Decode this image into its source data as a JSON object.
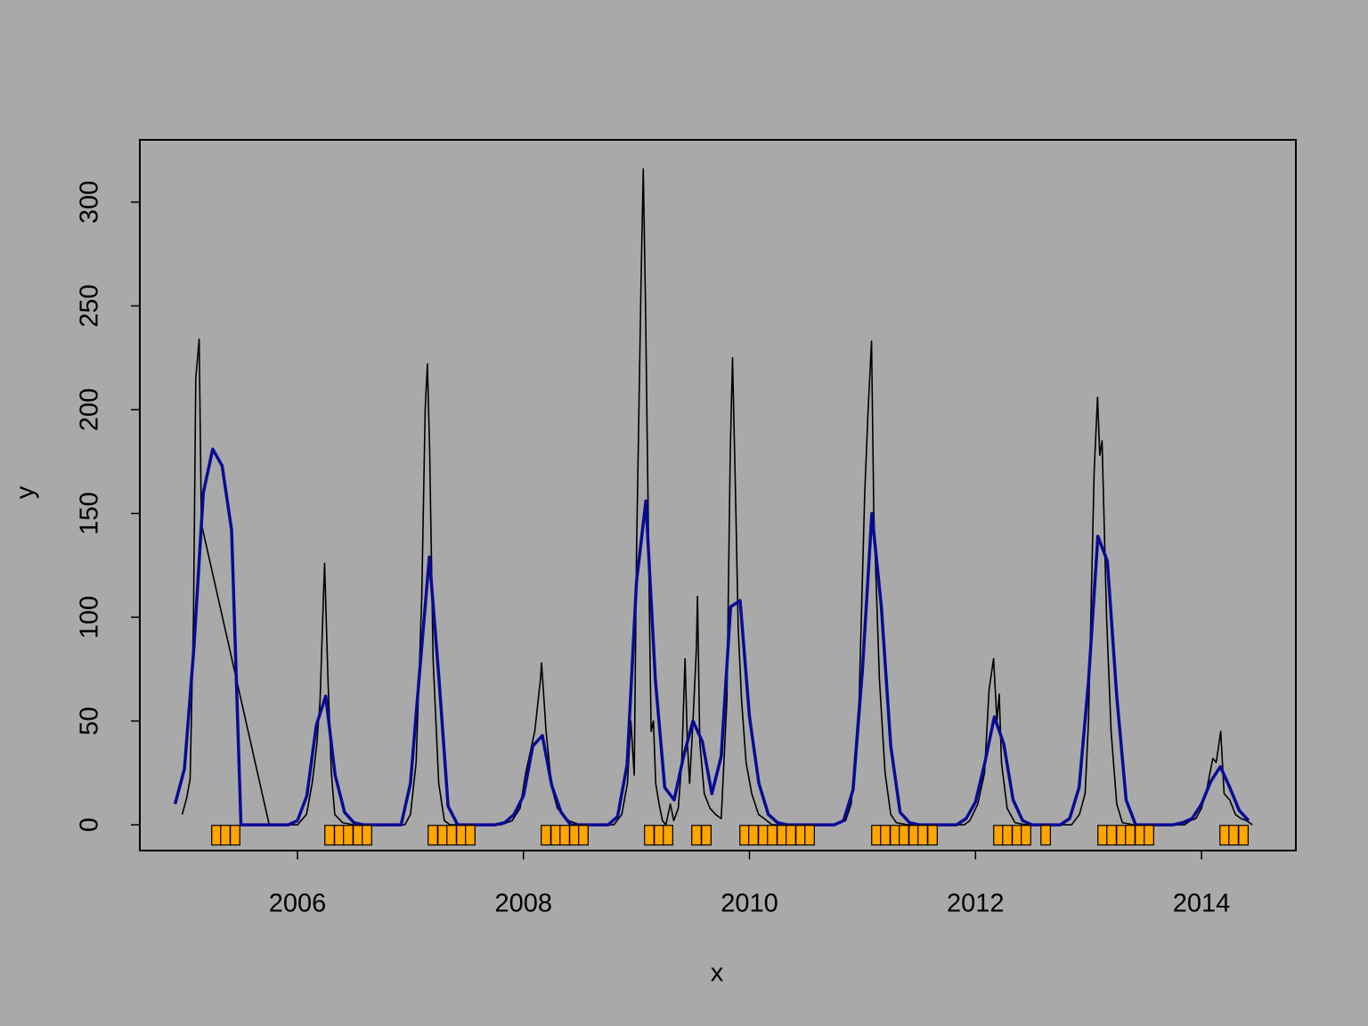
{
  "chart_data": {
    "type": "line",
    "xlabel": "x",
    "ylabel": "y",
    "xlim": [
      2004.605,
      2014.835
    ],
    "ylim": [
      -12.4,
      330
    ],
    "xticks": [
      2006,
      2008,
      2010,
      2012,
      2014
    ],
    "yticks": [
      0,
      50,
      100,
      150,
      200,
      250,
      300
    ],
    "background": "#a9a9a9",
    "series": [
      {
        "type": "line",
        "color": "#000000",
        "x": [
          2004.98,
          2005.02,
          2005.05,
          2005.08,
          2005.1,
          2005.13,
          2005.15,
          2005.75,
          2006.0,
          2006.08,
          2006.13,
          2006.17,
          2006.2,
          2006.23,
          2006.24,
          2006.27,
          2006.3,
          2006.33,
          2006.4,
          2006.5,
          2006.95,
          2007.0,
          2007.05,
          2007.1,
          2007.13,
          2007.15,
          2007.17,
          2007.2,
          2007.25,
          2007.3,
          2007.35,
          2007.8,
          2007.9,
          2007.97,
          2008.02,
          2008.1,
          2008.15,
          2008.16,
          2008.2,
          2008.25,
          2008.3,
          2008.4,
          2008.5,
          2008.8,
          2008.87,
          2008.92,
          2008.95,
          2008.98,
          2009.0,
          2009.04,
          2009.06,
          2009.08,
          2009.12,
          2009.13,
          2009.15,
          2009.17,
          2009.2,
          2009.23,
          2009.26,
          2009.3,
          2009.33,
          2009.37,
          2009.4,
          2009.43,
          2009.45,
          2009.47,
          2009.5,
          2009.53,
          2009.54,
          2009.56,
          2009.6,
          2009.65,
          2009.7,
          2009.75,
          2009.8,
          2009.83,
          2009.85,
          2009.88,
          2009.9,
          2009.93,
          2009.97,
          2010.02,
          2010.08,
          2010.13,
          2010.2,
          2010.75,
          2010.85,
          2010.9,
          2010.97,
          2011.02,
          2011.05,
          2011.08,
          2011.1,
          2011.15,
          2011.2,
          2011.25,
          2011.3,
          2011.4,
          2011.9,
          2011.95,
          2012.02,
          2012.08,
          2012.12,
          2012.16,
          2012.19,
          2012.21,
          2012.23,
          2012.28,
          2012.35,
          2012.45,
          2012.85,
          2012.92,
          2012.97,
          2013.0,
          2013.05,
          2013.08,
          2013.1,
          2013.12,
          2013.16,
          2013.2,
          2013.25,
          2013.3,
          2013.4,
          2013.85,
          2013.9,
          2013.95,
          2014.0,
          2014.05,
          2014.1,
          2014.13,
          2014.17,
          2014.2,
          2014.25,
          2014.3,
          2014.35,
          2014.4,
          2014.45
        ],
        "values": [
          5,
          13,
          22,
          100,
          215,
          234,
          145,
          0,
          0,
          5,
          20,
          38,
          60,
          110,
          126,
          70,
          25,
          5,
          1,
          0,
          0,
          5,
          30,
          110,
          200,
          222,
          180,
          80,
          20,
          2,
          0,
          0,
          2,
          8,
          25,
          45,
          70,
          78,
          45,
          18,
          8,
          2,
          0,
          0,
          5,
          20,
          50,
          24,
          130,
          260,
          316,
          250,
          80,
          45,
          50,
          20,
          10,
          2,
          0,
          10,
          2,
          8,
          30,
          80,
          40,
          20,
          50,
          85,
          110,
          40,
          15,
          8,
          5,
          3,
          60,
          180,
          225,
          150,
          95,
          60,
          30,
          15,
          5,
          3,
          0,
          0,
          2,
          10,
          60,
          160,
          200,
          233,
          150,
          70,
          25,
          5,
          1,
          0,
          0,
          2,
          10,
          25,
          65,
          80,
          50,
          63,
          30,
          8,
          1,
          0,
          0,
          5,
          15,
          50,
          170,
          206,
          178,
          185,
          100,
          45,
          10,
          1,
          0,
          0,
          2,
          3,
          8,
          18,
          32,
          30,
          45,
          15,
          12,
          5,
          3,
          2,
          0
        ]
      },
      {
        "type": "line",
        "color": "#0a0a96",
        "x": [
          2004.917,
          2005.0,
          2005.083,
          2005.167,
          2005.25,
          2005.333,
          2005.417,
          2005.5,
          2005.583,
          2005.667,
          2005.75,
          2005.833,
          2005.917,
          2006.0,
          2006.083,
          2006.167,
          2006.25,
          2006.333,
          2006.417,
          2006.5,
          2006.583,
          2006.667,
          2006.75,
          2006.833,
          2006.917,
          2007.0,
          2007.083,
          2007.167,
          2007.25,
          2007.333,
          2007.417,
          2007.5,
          2007.583,
          2007.667,
          2007.75,
          2007.833,
          2007.917,
          2008.0,
          2008.083,
          2008.167,
          2008.25,
          2008.333,
          2008.417,
          2008.5,
          2008.583,
          2008.667,
          2008.75,
          2008.833,
          2008.917,
          2009.0,
          2009.083,
          2009.167,
          2009.25,
          2009.333,
          2009.417,
          2009.5,
          2009.583,
          2009.667,
          2009.75,
          2009.833,
          2009.917,
          2010.0,
          2010.083,
          2010.167,
          2010.25,
          2010.333,
          2010.417,
          2010.5,
          2010.583,
          2010.667,
          2010.75,
          2010.833,
          2010.917,
          2011.0,
          2011.083,
          2011.167,
          2011.25,
          2011.333,
          2011.417,
          2011.5,
          2011.583,
          2011.667,
          2011.75,
          2011.833,
          2011.917,
          2012.0,
          2012.083,
          2012.167,
          2012.25,
          2012.333,
          2012.417,
          2012.5,
          2012.583,
          2012.667,
          2012.75,
          2012.833,
          2012.917,
          2013.0,
          2013.083,
          2013.167,
          2013.25,
          2013.333,
          2013.417,
          2013.5,
          2013.583,
          2013.667,
          2013.75,
          2013.833,
          2013.917,
          2014.0,
          2014.083,
          2014.167,
          2014.25,
          2014.333,
          2014.417
        ],
        "values": [
          10,
          27,
          85,
          160,
          181,
          173,
          142,
          0,
          0,
          0,
          0,
          0,
          0,
          2,
          14,
          48,
          62,
          24,
          6,
          1,
          0,
          0,
          0,
          0,
          0,
          20,
          75,
          129,
          72,
          9,
          0,
          0,
          0,
          0,
          0,
          1,
          5,
          14,
          38,
          43,
          19,
          6,
          0,
          0,
          0,
          0,
          0,
          4,
          29,
          117,
          156,
          70,
          18,
          12,
          33,
          50,
          40,
          15,
          33,
          105,
          108,
          52,
          20,
          5,
          1,
          0,
          0,
          0,
          0,
          0,
          0,
          2,
          17,
          75,
          150,
          105,
          38,
          6,
          1,
          0,
          0,
          0,
          0,
          0,
          3,
          11,
          30,
          52,
          39,
          12,
          2,
          0,
          0,
          0,
          0,
          3,
          18,
          69,
          139,
          127,
          62,
          12,
          0,
          0,
          0,
          0,
          0,
          1,
          3,
          10,
          21,
          28,
          18,
          7,
          2
        ]
      },
      {
        "type": "marker",
        "color": "#ffa500",
        "x": [
          2005.283,
          2005.362,
          2005.448,
          2006.284,
          2006.37,
          2006.449,
          2006.536,
          2006.615,
          2007.198,
          2007.285,
          2007.364,
          2007.45,
          2007.529,
          2008.199,
          2008.286,
          2008.365,
          2008.451,
          2008.53,
          2009.113,
          2009.2,
          2009.279,
          2009.531,
          2009.618,
          2009.957,
          2010.035,
          2010.122,
          2010.201,
          2010.288,
          2010.366,
          2010.453,
          2010.532,
          2011.123,
          2011.202,
          2011.289,
          2011.367,
          2011.454,
          2011.533,
          2011.62,
          2012.203,
          2012.282,
          2012.368,
          2012.447,
          2012.621,
          2013.125,
          2013.204,
          2013.291,
          2013.369,
          2013.456,
          2013.535,
          2014.205,
          2014.284,
          2014.371
        ],
        "values": [
          -5,
          -5,
          -5,
          -5,
          -5,
          -5,
          -5,
          -5,
          -5,
          -5,
          -5,
          -5,
          -5,
          -5,
          -5,
          -5,
          -5,
          -5,
          -5,
          -5,
          -5,
          -5,
          -5,
          -5,
          -5,
          -5,
          -5,
          -5,
          -5,
          -5,
          -5,
          -5,
          -5,
          -5,
          -5,
          -5,
          -5,
          -5,
          -5,
          -5,
          -5,
          -5,
          -5,
          -5,
          -5,
          -5,
          -5,
          -5,
          -5,
          -5,
          -5,
          -5
        ]
      }
    ]
  }
}
